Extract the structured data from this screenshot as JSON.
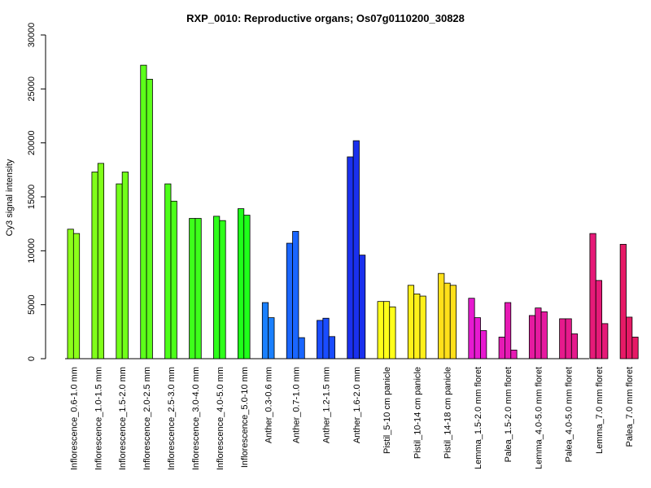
{
  "chart_data": {
    "type": "bar",
    "title": "RXP_0010: Reproductive organs; Os07g0110200_30828",
    "xlabel": "",
    "ylabel": "Cy3 signal intensity",
    "ylim": [
      0,
      30000
    ],
    "yticks": [
      0,
      5000,
      10000,
      15000,
      20000,
      25000,
      30000
    ],
    "grid": false,
    "categories": [
      "Inflorescence_0.6-1.0 mm",
      "Inflorescence_1.0-1.5 mm",
      "Inflorescence_1.5-2.0 mm",
      "Inflorescence_2.0-2.5 mm",
      "Inflorescence_2.5-3.0 mm",
      "Inflorescence_3.0-4.0 mm",
      "Inflorescence_4.0-5.0 mm",
      "Inflorescence_5.0-10 mm",
      "Anther_0.3-0.6 mm",
      "Anther_0.7-1.0 mm",
      "Anther_1.2-1.5 mm",
      "Anther_1.6-2.0 mm",
      "Pistil_5-10 cm panicle",
      "Pistil_10-14 cm panicle",
      "Pistil_14-18 cm panicle",
      "Lemma_1.5-2.0 mm floret",
      "Palea_1.5-2.0 mm floret",
      "Lemma_4.0-5.0 mm floret",
      "Palea_4.0-5.0 mm floret",
      "Lemma_7.0 mm floret",
      "Palea_7.0 mm floret"
    ],
    "groups": [
      {
        "color": "#8cff1a",
        "values": [
          12000,
          11600
        ]
      },
      {
        "color": "#80ff1a",
        "values": [
          17300,
          18100
        ]
      },
      {
        "color": "#72ff1a",
        "values": [
          16200,
          17300
        ]
      },
      {
        "color": "#5cff1a",
        "values": [
          27200,
          25900
        ]
      },
      {
        "color": "#4dff1a",
        "values": [
          16200,
          14600
        ]
      },
      {
        "color": "#3dff1a",
        "values": [
          13000,
          13000
        ]
      },
      {
        "color": "#2eff1a",
        "values": [
          13200,
          12800
        ]
      },
      {
        "color": "#1fff1a",
        "values": [
          13900,
          13300
        ]
      },
      {
        "color": "#1a80ff",
        "values": [
          5200,
          3800
        ]
      },
      {
        "color": "#1a66ff",
        "values": [
          10700,
          11800,
          1950
        ]
      },
      {
        "color": "#1a4cff",
        "values": [
          3550,
          3750,
          2050
        ]
      },
      {
        "color": "#1a30ee",
        "values": [
          18700,
          20200,
          9600
        ]
      },
      {
        "color": "#ffff1a",
        "values": [
          5300,
          5300,
          4800
        ]
      },
      {
        "color": "#fff01a",
        "values": [
          6800,
          6000,
          5800
        ]
      },
      {
        "color": "#ffe01a",
        "values": [
          7900,
          7000,
          6800
        ]
      },
      {
        "color": "#e61ad0",
        "values": [
          5600,
          3800,
          2600
        ]
      },
      {
        "color": "#e61ab4",
        "values": [
          2000,
          5200,
          800
        ]
      },
      {
        "color": "#e61aa0",
        "values": [
          4000,
          4700,
          4350
        ]
      },
      {
        "color": "#e61a8c",
        "values": [
          3700,
          3700,
          2300
        ]
      },
      {
        "color": "#e61a78",
        "values": [
          11600,
          7250,
          3250
        ]
      },
      {
        "color": "#e61a66",
        "values": [
          10600,
          3850,
          2000
        ]
      }
    ]
  }
}
